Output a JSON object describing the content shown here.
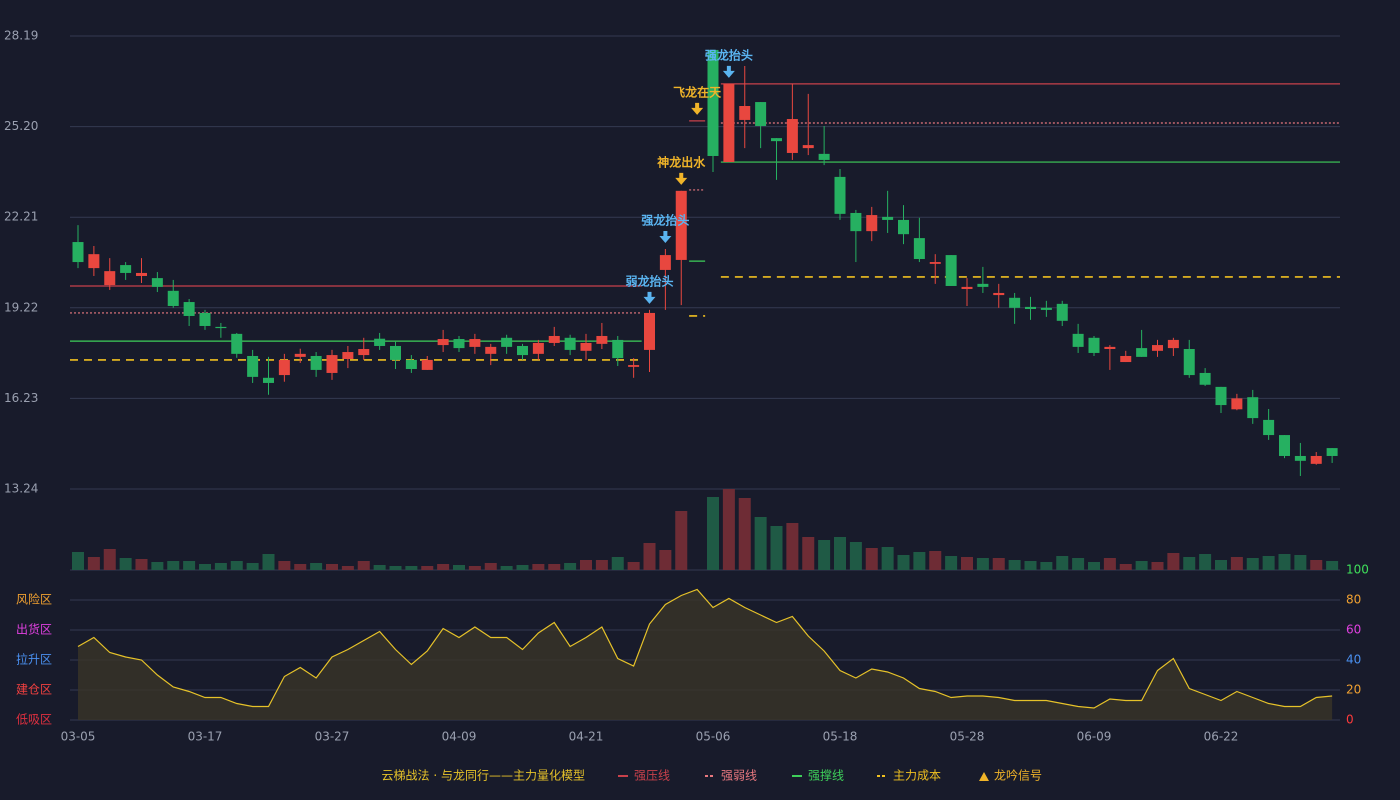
{
  "chart_data": {
    "type": "candlestick",
    "categories": [
      "03-05",
      null,
      null,
      null,
      null,
      null,
      null,
      null,
      "03-17",
      null,
      null,
      null,
      null,
      null,
      null,
      null,
      "03-27",
      null,
      null,
      null,
      null,
      null,
      null,
      null,
      "04-09",
      null,
      null,
      null,
      null,
      null,
      null,
      null,
      "04-21",
      null,
      null,
      null,
      null,
      null,
      null,
      null,
      "05-06",
      null,
      null,
      null,
      null,
      null,
      null,
      null,
      "05-18",
      null,
      null,
      null,
      null,
      null,
      null,
      null,
      "05-28",
      null,
      null,
      null,
      null,
      null,
      null,
      null,
      "06-09",
      null,
      null,
      null,
      null,
      null,
      null,
      null,
      "06-22",
      null,
      null,
      null,
      null,
      null,
      null,
      null
    ],
    "open": [
      21.39,
      20.53,
      19.97,
      20.63,
      20.27,
      20.2,
      19.78,
      19.41,
      19.05,
      18.59,
      18.36,
      17.63,
      16.91,
      17.0,
      17.6,
      17.63,
      17.07,
      17.53,
      17.66,
      18.2,
      17.96,
      17.5,
      17.17,
      17.99,
      18.19,
      17.93,
      17.7,
      18.23,
      17.96,
      17.7,
      18.06,
      18.23,
      17.8,
      18.03,
      18.16,
      17.27,
      17.83,
      20.47,
      20.8,
      null,
      27.73,
      24.03,
      25.42,
      26.01,
      24.82,
      24.33,
      24.49,
      24.3,
      23.54,
      22.35,
      21.75,
      22.22,
      22.12,
      21.52,
      20.67,
      20.96,
      19.84,
      20.01,
      19.64,
      19.55,
      19.25,
      19.22,
      19.35,
      18.36,
      18.23,
      17.86,
      17.43,
      17.89,
      17.8,
      17.89,
      17.86,
      17.07,
      16.61,
      15.87,
      16.27,
      15.52,
      15.02,
      14.33,
      14.07,
      14.59
    ],
    "high": [
      21.95,
      21.26,
      20.86,
      20.73,
      20.86,
      20.4,
      20.14,
      19.51,
      19.15,
      18.72,
      18.39,
      17.83,
      17.6,
      17.7,
      17.87,
      17.76,
      17.83,
      17.96,
      18.23,
      18.39,
      18.1,
      17.66,
      17.63,
      18.49,
      18.29,
      18.36,
      18.03,
      18.33,
      18.03,
      18.16,
      18.59,
      18.33,
      18.36,
      18.72,
      18.29,
      17.56,
      19.15,
      21.16,
      23.08,
      null,
      27.73,
      26.61,
      27.2,
      26.01,
      24.82,
      26.61,
      26.28,
      25.22,
      23.8,
      22.45,
      22.55,
      23.08,
      22.61,
      22.19,
      20.99,
      20.96,
      20.2,
      20.57,
      20.01,
      19.71,
      19.58,
      19.45,
      19.45,
      18.69,
      18.29,
      17.99,
      17.8,
      18.49,
      18.16,
      18.23,
      18.16,
      17.23,
      16.61,
      16.38,
      16.51,
      15.88,
      15.02,
      14.76,
      14.46,
      14.59
    ],
    "low": [
      20.53,
      20.27,
      19.81,
      20.14,
      20.04,
      19.74,
      19.22,
      18.62,
      18.49,
      18.23,
      17.57,
      16.74,
      16.35,
      16.78,
      17.4,
      16.94,
      16.84,
      17.23,
      17.5,
      17.83,
      17.2,
      17.07,
      17.17,
      17.76,
      17.76,
      17.7,
      17.33,
      17.7,
      17.5,
      17.5,
      17.96,
      17.66,
      17.5,
      17.86,
      17.3,
      16.91,
      17.1,
      19.15,
      19.31,
      null,
      23.7,
      24.03,
      24.49,
      24.49,
      23.44,
      24.1,
      24.26,
      23.93,
      22.12,
      20.73,
      21.42,
      21.69,
      21.32,
      20.73,
      20.01,
      19.94,
      19.28,
      19.71,
      19.22,
      18.69,
      18.82,
      18.92,
      18.62,
      17.73,
      17.63,
      17.17,
      17.43,
      17.6,
      17.6,
      17.63,
      16.91,
      16.64,
      15.75,
      15.84,
      15.39,
      14.86,
      14.26,
      13.67,
      14.04,
      14.1
    ],
    "close": [
      20.73,
      20.99,
      20.43,
      20.37,
      20.37,
      19.91,
      19.28,
      18.95,
      18.62,
      18.55,
      17.7,
      16.94,
      16.74,
      17.5,
      17.7,
      17.17,
      17.66,
      17.76,
      17.86,
      17.96,
      17.5,
      17.2,
      17.5,
      18.19,
      17.89,
      18.19,
      17.93,
      17.93,
      17.66,
      18.06,
      18.29,
      17.83,
      18.06,
      18.29,
      17.56,
      17.33,
      19.05,
      20.96,
      23.08,
      null,
      24.23,
      26.61,
      25.88,
      25.22,
      24.72,
      25.45,
      24.59,
      24.1,
      22.32,
      21.75,
      22.28,
      22.12,
      21.65,
      20.83,
      20.73,
      19.94,
      19.91,
      19.91,
      19.71,
      19.22,
      19.18,
      19.15,
      18.79,
      17.93,
      17.73,
      17.93,
      17.63,
      17.6,
      17.99,
      18.16,
      17.0,
      16.68,
      16.01,
      16.23,
      15.58,
      15.02,
      14.33,
      14.17,
      14.33,
      14.33
    ],
    "up_color": "#e8473f",
    "down_color": "#26b061",
    "ylim": [
      13.24,
      28.19
    ],
    "yticks": [
      28.19,
      {
        "value": 25.2,
        "label": "25.20"
      },
      22.21,
      19.22,
      16.23,
      13.24
    ],
    "grid": true,
    "volume": {
      "values": [
        18,
        13,
        21,
        12,
        11,
        8,
        9,
        9,
        6,
        7,
        9,
        7,
        16,
        9,
        6,
        7,
        6,
        4,
        9,
        5,
        4,
        4,
        4,
        6,
        5,
        4,
        7,
        4,
        5,
        6,
        6,
        7,
        10,
        10,
        13,
        8,
        27,
        20,
        59,
        null,
        73,
        81,
        72,
        53,
        44,
        47,
        33,
        30,
        33,
        28,
        22,
        23,
        15,
        18,
        19,
        14,
        13,
        12,
        12,
        10,
        9,
        8,
        14,
        12,
        8,
        12,
        6,
        9,
        8,
        17,
        13,
        16,
        10,
        13,
        12,
        14,
        16,
        15,
        10,
        9
      ],
      "up_color": "#6e2c35",
      "down_color": "#1f5a45"
    },
    "levels": [
      {
        "name": "强压线",
        "color": "#c8414b",
        "dash": false,
        "segments": [
          {
            "from": 0,
            "to": 35,
            "value": 19.94
          },
          {
            "from": 39,
            "to": 39,
            "value": 25.39
          },
          {
            "from": 41,
            "to": 79,
            "value": 26.61
          }
        ]
      },
      {
        "name": "强弱线",
        "color": "#e8787f",
        "dash": true,
        "segments": [
          {
            "from": 0,
            "to": 35,
            "value": 19.05
          },
          {
            "from": 39,
            "to": 39,
            "value": 23.11
          },
          {
            "from": 41,
            "to": 79,
            "value": 25.32
          }
        ]
      },
      {
        "name": "强撑线",
        "color": "#3ecf5a",
        "dash": false,
        "segments": [
          {
            "from": 0,
            "to": 35,
            "value": 18.12
          },
          {
            "from": 39,
            "to": 39,
            "value": 20.76
          },
          {
            "from": 41,
            "to": 79,
            "value": 24.03
          }
        ]
      },
      {
        "name": "主力成本",
        "color": "#f0c020",
        "dash": true,
        "segments": [
          {
            "from": 0,
            "to": 35,
            "value": 17.5
          },
          {
            "from": 39,
            "to": 39,
            "value": 18.95
          },
          {
            "from": 41,
            "to": 79,
            "value": 20.24
          }
        ]
      }
    ],
    "signals": [
      {
        "index": 36,
        "label": "弱龙抬头",
        "color": "#5ab4f0"
      },
      {
        "index": 37,
        "label": "强龙抬头",
        "color": "#5ab4f0"
      },
      {
        "index": 38,
        "label": "神龙出水",
        "color": "#f0b429"
      },
      {
        "index": 39,
        "label": "飞龙在天",
        "color": "#f0b429"
      },
      {
        "index": 41,
        "label": "强龙抬头",
        "color": "#5ab4f0"
      }
    ],
    "signal_legend": {
      "label": "龙吟信号",
      "color": "#f0b429"
    },
    "legend_title": "云梯战法 · 与龙同行——主力量化模型",
    "indicator": {
      "values": [
        49,
        55,
        45,
        42,
        40,
        30,
        22,
        19,
        15,
        15,
        11,
        9,
        9,
        29,
        35,
        28,
        42,
        47,
        53,
        59,
        47,
        37,
        46,
        61,
        55,
        62,
        55,
        55,
        47,
        58,
        65,
        49,
        55,
        62,
        41,
        36,
        64,
        77,
        83,
        87,
        75,
        81,
        75,
        70,
        65,
        69,
        56,
        46,
        33,
        28,
        34,
        32,
        28,
        21,
        19,
        15,
        16,
        16,
        15,
        13,
        13,
        13,
        11,
        9,
        8,
        14,
        13,
        13,
        33,
        41,
        21,
        17,
        13,
        19,
        15,
        11,
        9,
        9,
        15,
        16
      ],
      "color": "#e6c229",
      "ylim": [
        0,
        100
      ],
      "yticks": [
        0,
        20,
        40,
        60,
        80,
        100
      ],
      "tick_colors": [
        "#ff3b3b",
        "#f0a030",
        "#4a90f0",
        "#e040e0",
        "#f0a030",
        "#3ee05a"
      ],
      "zones": [
        {
          "label": "风险区",
          "value": 80,
          "color": "#f0a030"
        },
        {
          "label": "出货区",
          "value": 60,
          "color": "#e040e0"
        },
        {
          "label": "拉升区",
          "value": 40,
          "color": "#4a90f0"
        },
        {
          "label": "建仓区",
          "value": 20,
          "color": "#f04040"
        },
        {
          "label": "低吸区",
          "value": 0,
          "color": "#e03040"
        }
      ]
    }
  }
}
